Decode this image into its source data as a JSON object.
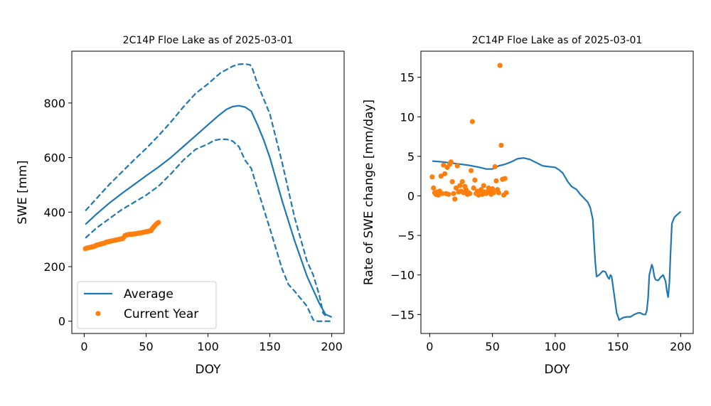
{
  "colors": {
    "average": "#1f77b4",
    "current": "#ff7f0e",
    "axis": "#000000"
  },
  "chart_data": [
    {
      "type": "line",
      "title": "2C14P Floe Lake as of 2025-03-01",
      "xlabel": "DOY",
      "ylabel": "SWE [mm]",
      "xlim": [
        -10,
        210
      ],
      "ylim": [
        -45,
        990
      ],
      "xticks": [
        0,
        50,
        100,
        150,
        200
      ],
      "yticks": [
        0,
        200,
        400,
        600,
        800
      ],
      "legend": {
        "placement": "lower-left",
        "entries": [
          "Average",
          "Current Year"
        ]
      },
      "series": [
        {
          "name": "Average",
          "style": "solid",
          "x": [
            1,
            10,
            20,
            30,
            40,
            50,
            60,
            70,
            80,
            90,
            100,
            108,
            115,
            120,
            125,
            130,
            135,
            140,
            145,
            150,
            160,
            170,
            180,
            190,
            195,
            200
          ],
          "y": [
            355,
            393,
            432,
            467,
            500,
            533,
            565,
            600,
            640,
            680,
            720,
            752,
            777,
            787,
            790,
            785,
            770,
            720,
            665,
            600,
            440,
            295,
            165,
            65,
            25,
            15
          ]
        },
        {
          "name": "Average upper",
          "style": "dashed",
          "x": [
            1,
            10,
            20,
            30,
            40,
            50,
            60,
            70,
            80,
            90,
            100,
            110,
            120,
            125,
            130,
            134,
            136,
            140,
            145,
            150,
            160,
            170,
            180,
            185,
            190,
            193,
            196
          ],
          "y": [
            405,
            450,
            500,
            545,
            590,
            633,
            680,
            730,
            785,
            835,
            870,
            910,
            935,
            942,
            943,
            940,
            925,
            870,
            815,
            760,
            580,
            380,
            220,
            170,
            95,
            30,
            15
          ]
        },
        {
          "name": "Average lower",
          "style": "dashed",
          "x": [
            1,
            10,
            20,
            30,
            40,
            50,
            60,
            70,
            80,
            90,
            100,
            105,
            110,
            115,
            120,
            125,
            130,
            135,
            140,
            150,
            160,
            165,
            170,
            180,
            185,
            187,
            190,
            200
          ],
          "y": [
            305,
            342,
            375,
            408,
            435,
            462,
            495,
            540,
            590,
            630,
            650,
            663,
            667,
            667,
            660,
            640,
            590,
            560,
            485,
            340,
            190,
            135,
            110,
            55,
            5,
            0,
            0,
            0
          ]
        },
        {
          "name": "Current Year",
          "style": "markers",
          "x": [
            1,
            2,
            3,
            4,
            5,
            6,
            7,
            8,
            9,
            10,
            11,
            12,
            13,
            14,
            15,
            16,
            17,
            18,
            19,
            20,
            21,
            22,
            23,
            24,
            25,
            26,
            27,
            28,
            29,
            30,
            31,
            32,
            33,
            34,
            35,
            36,
            37,
            38,
            39,
            40,
            41,
            42,
            43,
            44,
            45,
            46,
            47,
            48,
            49,
            50,
            51,
            52,
            53,
            54,
            55,
            56,
            57,
            58,
            59,
            60
          ],
          "y": [
            266,
            268,
            269,
            270,
            271,
            272,
            273,
            274,
            276,
            279,
            280,
            281,
            282,
            284,
            285,
            286,
            288,
            290,
            291,
            292,
            293,
            294,
            295,
            296,
            297,
            298,
            299,
            300,
            301,
            302,
            303,
            307,
            314,
            316,
            317,
            318,
            318,
            319,
            319,
            320,
            320,
            321,
            322,
            323,
            323,
            324,
            325,
            326,
            327,
            328,
            329,
            330,
            331,
            332,
            339,
            345,
            350,
            355,
            359,
            362
          ]
        }
      ]
    },
    {
      "type": "line",
      "title": "2C14P Floe Lake as of 2025-03-01",
      "xlabel": "DOY",
      "ylabel": "Rate of SWE change [mm/day]",
      "xlim": [
        -7,
        210
      ],
      "ylim": [
        -17.4,
        18.3
      ],
      "xticks": [
        0,
        50,
        100,
        150,
        200
      ],
      "yticks": [
        -15,
        -10,
        -5,
        0,
        5,
        10,
        15
      ],
      "series": [
        {
          "name": "Average",
          "style": "solid",
          "x": [
            2,
            10,
            20,
            30,
            40,
            45,
            50,
            55,
            60,
            65,
            70,
            75,
            80,
            85,
            90,
            95,
            100,
            103,
            106,
            110,
            113,
            117,
            120,
            123,
            126,
            128,
            130,
            131,
            132,
            133,
            135,
            138,
            140,
            142,
            143,
            144,
            145,
            147,
            149,
            151,
            152,
            154,
            157,
            160,
            163,
            166,
            168,
            170,
            172,
            173,
            174,
            175,
            177,
            178,
            179,
            180,
            182,
            184,
            186,
            188,
            189,
            190,
            191,
            192,
            193,
            195,
            197,
            200
          ],
          "y": [
            4.4,
            4.3,
            4.1,
            3.9,
            3.6,
            3.4,
            3.4,
            3.8,
            4.0,
            4.3,
            4.7,
            4.8,
            4.6,
            4.2,
            3.8,
            3.7,
            3.6,
            3.3,
            2.9,
            1.8,
            1.2,
            0.8,
            0.2,
            -0.3,
            -0.8,
            -1.5,
            -3,
            -6,
            -8.5,
            -10.2,
            -10.0,
            -9.5,
            -9.6,
            -10.3,
            -10.5,
            -10.0,
            -10.2,
            -12.5,
            -14.8,
            -15.7,
            -15.6,
            -15.4,
            -15.3,
            -15.3,
            -15.0,
            -14.8,
            -14.8,
            -15.0,
            -15.0,
            -14.5,
            -13.0,
            -10.0,
            -8.7,
            -9.2,
            -10.2,
            -10.6,
            -10.7,
            -10.3,
            -10.0,
            -10.8,
            -12.0,
            -12.8,
            -11.0,
            -7.0,
            -3.5,
            -2.7,
            -2.4,
            -2.0
          ]
        },
        {
          "name": "Current Year",
          "style": "markers",
          "x": [
            2,
            3,
            4,
            5,
            6,
            7,
            8,
            9,
            10,
            11,
            12,
            13,
            14,
            15,
            16,
            17,
            18,
            19,
            20,
            21,
            22,
            23,
            24,
            25,
            26,
            27,
            28,
            29,
            30,
            31,
            32,
            33,
            34,
            35,
            36,
            37,
            38,
            39,
            40,
            41,
            42,
            43,
            44,
            45,
            46,
            47,
            48,
            49,
            50,
            51,
            52,
            53,
            54,
            55,
            56,
            57,
            58,
            59,
            60,
            61
          ],
          "y": [
            2.4,
            1.0,
            0.4,
            0.2,
            0.5,
            0.1,
            0.6,
            2.5,
            0.3,
            3.9,
            2.8,
            0.3,
            3.6,
            0.2,
            4.0,
            4.3,
            1.8,
            0.3,
            -0.4,
            1.0,
            3.8,
            0.5,
            1.3,
            0.6,
            1.8,
            0.4,
            1.2,
            0.8,
            0.2,
            0.4,
            0.3,
            3.2,
            9.4,
            1.0,
            2.0,
            0.3,
            0.6,
            0.1,
            0.4,
            0.8,
            0.2,
            1.3,
            0.5,
            0.3,
            0.5,
            1.0,
            0.6,
            0.2,
            0.9,
            0.4,
            3.7,
            1.9,
            0.8,
            0.4,
            16.5,
            6.4,
            2.1,
            0.1,
            2.2,
            0.4
          ]
        }
      ]
    }
  ]
}
